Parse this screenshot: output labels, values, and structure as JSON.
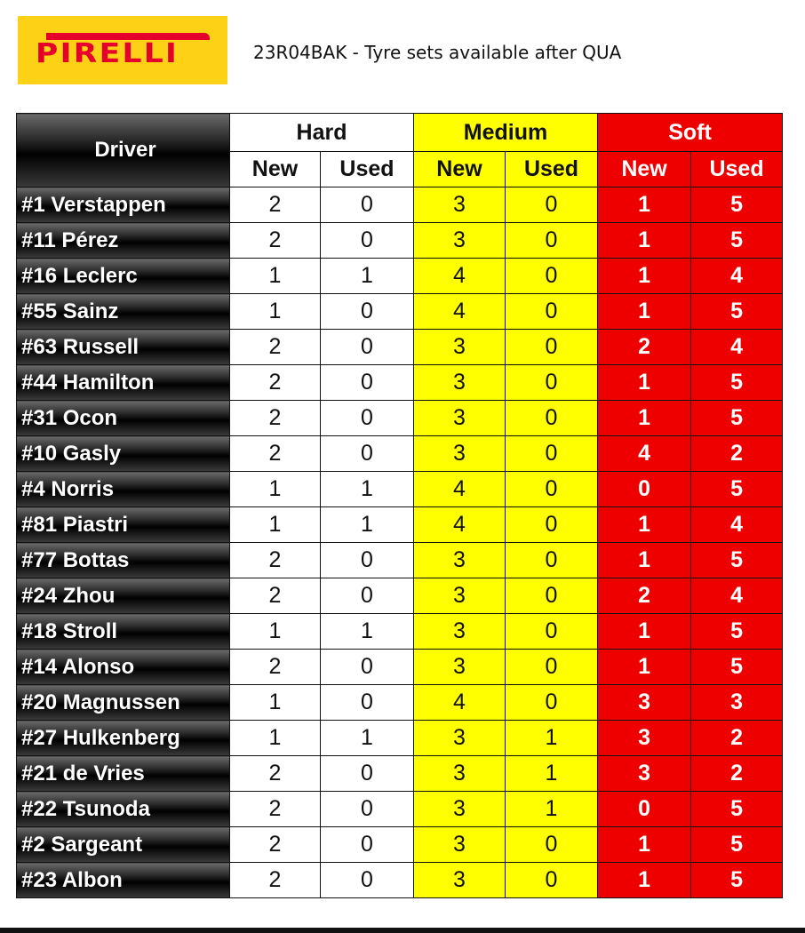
{
  "logo": {
    "text": "PIRELLI",
    "colors": {
      "background": "#fcd116",
      "text": "#e4002b"
    }
  },
  "title": "23R04BAK - Tyre sets available after QUA",
  "colors": {
    "hard": "#ffffff",
    "medium": "#ffff00",
    "soft": "#ee0000",
    "driver": "#000000"
  },
  "table": {
    "driver_header": "Driver",
    "compounds": [
      "Hard",
      "Medium",
      "Soft"
    ],
    "sub_headers": [
      "New",
      "Used",
      "New",
      "Used",
      "New",
      "Used"
    ],
    "rows": [
      {
        "driver": "#1 Verstappen",
        "values": [
          "2",
          "0",
          "3",
          "0",
          "1",
          "5"
        ]
      },
      {
        "driver": "#11 Pérez",
        "values": [
          "2",
          "0",
          "3",
          "0",
          "1",
          "5"
        ]
      },
      {
        "driver": "#16 Leclerc",
        "values": [
          "1",
          "1",
          "4",
          "0",
          "1",
          "4"
        ]
      },
      {
        "driver": "#55 Sainz",
        "values": [
          "1",
          "0",
          "4",
          "0",
          "1",
          "5"
        ]
      },
      {
        "driver": "#63 Russell",
        "values": [
          "2",
          "0",
          "3",
          "0",
          "2",
          "4"
        ]
      },
      {
        "driver": "#44 Hamilton",
        "values": [
          "2",
          "0",
          "3",
          "0",
          "1",
          "5"
        ]
      },
      {
        "driver": "#31 Ocon",
        "values": [
          "2",
          "0",
          "3",
          "0",
          "1",
          "5"
        ]
      },
      {
        "driver": "#10 Gasly",
        "values": [
          "2",
          "0",
          "3",
          "0",
          "4",
          "2"
        ]
      },
      {
        "driver": "#4 Norris",
        "values": [
          "1",
          "1",
          "4",
          "0",
          "0",
          "5"
        ]
      },
      {
        "driver": "#81 Piastri",
        "values": [
          "1",
          "1",
          "4",
          "0",
          "1",
          "4"
        ]
      },
      {
        "driver": "#77 Bottas",
        "values": [
          "2",
          "0",
          "3",
          "0",
          "1",
          "5"
        ]
      },
      {
        "driver": "#24 Zhou",
        "values": [
          "2",
          "0",
          "3",
          "0",
          "2",
          "4"
        ]
      },
      {
        "driver": "#18 Stroll",
        "values": [
          "1",
          "1",
          "3",
          "0",
          "1",
          "5"
        ]
      },
      {
        "driver": "#14 Alonso",
        "values": [
          "2",
          "0",
          "3",
          "0",
          "1",
          "5"
        ]
      },
      {
        "driver": "#20 Magnussen",
        "values": [
          "1",
          "0",
          "4",
          "0",
          "3",
          "3"
        ]
      },
      {
        "driver": "#27 Hulkenberg",
        "values": [
          "1",
          "1",
          "3",
          "1",
          "3",
          "2"
        ]
      },
      {
        "driver": "#21 de Vries",
        "values": [
          "2",
          "0",
          "3",
          "1",
          "3",
          "2"
        ]
      },
      {
        "driver": "#22 Tsunoda",
        "values": [
          "2",
          "0",
          "3",
          "1",
          "0",
          "5"
        ]
      },
      {
        "driver": "#2 Sargeant",
        "values": [
          "2",
          "0",
          "3",
          "0",
          "1",
          "5"
        ]
      },
      {
        "driver": "#23 Albon",
        "values": [
          "2",
          "0",
          "3",
          "0",
          "1",
          "5"
        ]
      }
    ]
  }
}
